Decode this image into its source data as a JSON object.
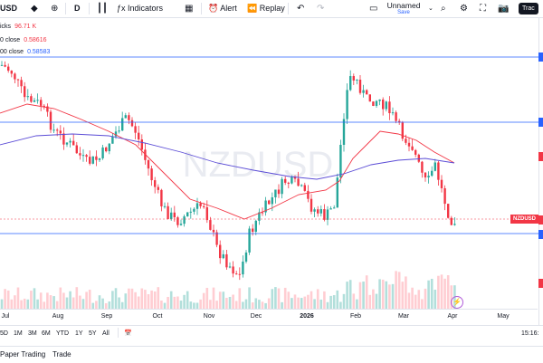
{
  "toolbar": {
    "symbol": "USD",
    "add_icon": "plus-circle-icon",
    "interval": "D",
    "indicators_label": "Indicators",
    "alert_label": "Alert",
    "replay_label": "Replay",
    "layout_name": "Unnamed",
    "save_label": "Save",
    "trade_label": "Trac"
  },
  "legend": {
    "ticks_label": "icks",
    "ticks_value": "96.71 K",
    "ma1_label": "0 close",
    "ma1_value": "0.58616",
    "ma2_label": "00 close",
    "ma2_value": "0.58583"
  },
  "colors": {
    "up": "#26a69a",
    "down": "#f23645",
    "ma_fast": "#f23645",
    "ma_slow": "#5b4cd6",
    "hline": "#2962ff",
    "volume_up": "#b2dfdb",
    "volume_down": "#ffcdd2"
  },
  "chart": {
    "watermark": "NZDUSD",
    "price_tag": "NZDUSD"
  },
  "time_axis": {
    "labels": [
      "Jul",
      "Aug",
      "Sep",
      "Oct",
      "Nov",
      "Dec",
      "2026",
      "Feb",
      "Mar",
      "Apr",
      "May"
    ],
    "time": "15:16:"
  },
  "range_bar": {
    "ranges": [
      "5D",
      "1M",
      "3M",
      "6M",
      "YTD",
      "1Y",
      "5Y",
      "All"
    ]
  },
  "bottom_bar": {
    "paper_trading": "Paper Trading",
    "trade": "Trade"
  }
}
